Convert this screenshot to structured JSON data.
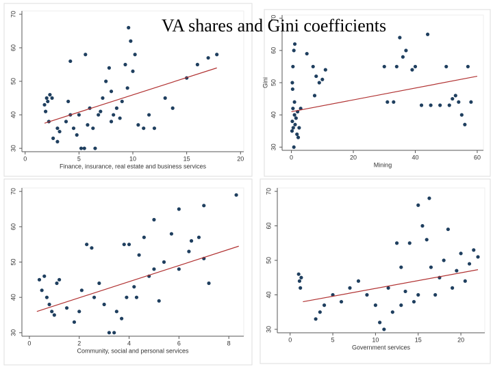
{
  "title": "VA shares and Gini coefficients",
  "chart_data": [
    {
      "type": "scatter",
      "xlabel": "Finance, insurance, real estate and business services",
      "color": "#1f3f5f",
      "x": [
        1.8,
        1.9,
        2,
        2.1,
        2.3,
        2.5,
        2.2,
        2.6,
        3,
        3.2,
        3.8,
        4,
        4.2,
        4.5,
        4.8,
        5,
        5.2,
        5.5,
        5.8,
        6,
        6.3,
        6.8,
        7,
        7.2,
        7.5,
        7.8,
        8,
        8.2,
        8.5,
        8.8,
        9,
        9.3,
        9.5,
        9.8,
        10,
        10.2,
        10.5,
        11,
        11.5,
        12,
        13,
        13.7,
        15,
        16,
        17,
        17.8,
        4.2,
        5.6,
        9.6,
        3,
        6.5,
        8
      ],
      "values": [
        43,
        41,
        45,
        44,
        46,
        45,
        38,
        33,
        36,
        35,
        38,
        44,
        40,
        36,
        34,
        40,
        30,
        30,
        37,
        42,
        36,
        40,
        41,
        45,
        50,
        54,
        47,
        40,
        42,
        39,
        44,
        55,
        48,
        62,
        53,
        58,
        37,
        36,
        40,
        36,
        45,
        42,
        51,
        55,
        57,
        58,
        56,
        58,
        66,
        32,
        30,
        38
      ],
      "trend": {
        "color": "#b03030",
        "x": [
          1.8,
          17.8
        ],
        "values": [
          37.5,
          54
        ]
      },
      "xlim": [
        -0.3,
        20.3
      ],
      "ylim": [
        29,
        71
      ],
      "xticks": [
        0,
        5,
        10,
        15,
        20
      ],
      "yticks": [
        30,
        40,
        50,
        60,
        70
      ]
    },
    {
      "type": "scatter",
      "xlabel": "Mining",
      "ylabel": "Gini",
      "color": "#1f3f5f",
      "x": [
        0.2,
        0.3,
        0.5,
        0.6,
        0.8,
        1,
        1,
        1.2,
        1.5,
        1.8,
        2,
        2.2,
        0.4,
        0.5,
        0.8,
        1.1,
        0.3,
        2.5,
        3,
        5,
        7,
        8,
        9,
        10,
        11,
        7.5,
        30,
        31,
        33,
        34,
        36,
        37,
        39,
        40,
        42,
        45,
        48,
        50,
        51,
        52,
        53,
        54,
        55,
        56,
        57,
        58,
        44,
        35
      ],
      "values": [
        35,
        38,
        42,
        36,
        30,
        44,
        40,
        37,
        39,
        34,
        41,
        33,
        48,
        55,
        60,
        62,
        50,
        36,
        42,
        59,
        55,
        52,
        50,
        51,
        54,
        46,
        55,
        44,
        44,
        55,
        58,
        60,
        54,
        55,
        43,
        43,
        43,
        55,
        43,
        45,
        46,
        44,
        40,
        37,
        55,
        44,
        65,
        64
      ],
      "trend": {
        "color": "#b03030",
        "x": [
          0,
          60
        ],
        "values": [
          41,
          52
        ]
      },
      "xlim": [
        -3,
        62
      ],
      "ylim": [
        29,
        71
      ],
      "xticks": [
        0,
        20,
        40,
        60
      ],
      "yticks": [
        30,
        40,
        50,
        60,
        70
      ]
    },
    {
      "type": "scatter",
      "xlabel": "Community, social and personal services",
      "color": "#1f3f5f",
      "x": [
        0.4,
        0.5,
        0.6,
        0.7,
        0.8,
        0.9,
        1,
        1.1,
        1.2,
        1.5,
        1.8,
        2,
        2.1,
        2.3,
        2.5,
        2.6,
        2.8,
        3,
        3.2,
        3.4,
        3.5,
        3.7,
        3.9,
        4,
        4.2,
        4.4,
        4.6,
        4.8,
        5,
        5,
        5.2,
        5.4,
        5.7,
        6,
        6,
        6.5,
        6.8,
        7,
        7,
        7.2,
        6.4,
        8.3,
        3.8,
        4.3
      ],
      "values": [
        45,
        42,
        46,
        40,
        38,
        36,
        35,
        44,
        45,
        37,
        33,
        36,
        42,
        55,
        54,
        40,
        44,
        38,
        30,
        30,
        36,
        34,
        40,
        55,
        43,
        52,
        57,
        46,
        62,
        48,
        39,
        50,
        58,
        65,
        48,
        56,
        57,
        66,
        51,
        44,
        53,
        69,
        55,
        40
      ],
      "trend": {
        "color": "#b03030",
        "x": [
          0.3,
          8.4
        ],
        "values": [
          36,
          54.5
        ]
      },
      "xlim": [
        -0.3,
        8.6
      ],
      "ylim": [
        29,
        71
      ],
      "xticks": [
        0,
        2,
        4,
        6,
        8
      ],
      "yticks": [
        30,
        40,
        50,
        60,
        70
      ]
    },
    {
      "type": "scatter",
      "xlabel": "Government services",
      "color": "#1f3f5f",
      "x": [
        1,
        1.1,
        1.2,
        1.3,
        3,
        3.5,
        4,
        5,
        6,
        7,
        8,
        9,
        10,
        10.5,
        11,
        11.5,
        12,
        12.5,
        13,
        13.5,
        14,
        14.5,
        15,
        15.5,
        16,
        16.3,
        16.5,
        17,
        17.5,
        18,
        18.5,
        19,
        19.5,
        20,
        20.5,
        21,
        21.5,
        22,
        13,
        15
      ],
      "values": [
        46,
        44,
        42,
        45,
        33,
        35,
        37,
        40,
        38,
        42,
        44,
        40,
        37,
        32,
        30,
        42,
        35,
        55,
        48,
        41,
        55,
        38,
        66,
        60,
        56,
        68,
        48,
        40,
        45,
        50,
        59,
        42,
        47,
        52,
        44,
        49,
        53,
        51,
        37,
        40
      ],
      "trend": {
        "color": "#b03030",
        "x": [
          1.5,
          22
        ],
        "values": [
          38,
          47.3
        ]
      },
      "xlim": [
        -1.5,
        22.8
      ],
      "ylim": [
        29,
        71
      ],
      "xticks": [
        0,
        5,
        10,
        15,
        20
      ],
      "yticks": [
        30,
        40,
        50,
        60,
        70
      ]
    }
  ]
}
